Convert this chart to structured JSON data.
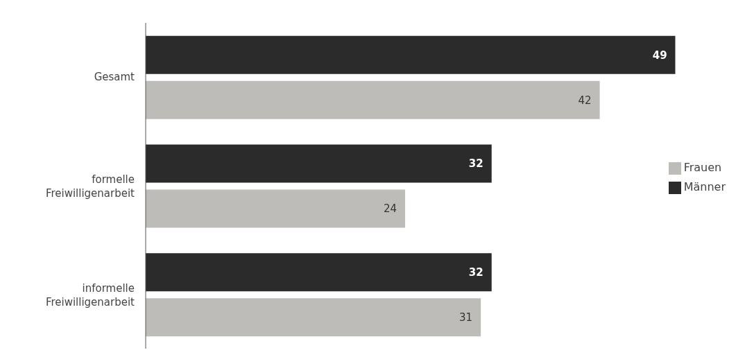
{
  "chart_data": {
    "type": "bar",
    "orientation": "horizontal",
    "categories": [
      "Gesamt",
      "formelle Freiwilligenarbeit",
      "informelle Freiwilligenarbeit"
    ],
    "series": [
      {
        "name": "Männer",
        "color": "#2b2b2b",
        "values": [
          49,
          32,
          32
        ]
      },
      {
        "name": "Frauen",
        "color": "#bdbcb8",
        "values": [
          42,
          24,
          31
        ]
      }
    ],
    "data_labels": true,
    "legend": "right",
    "grid": false
  }
}
